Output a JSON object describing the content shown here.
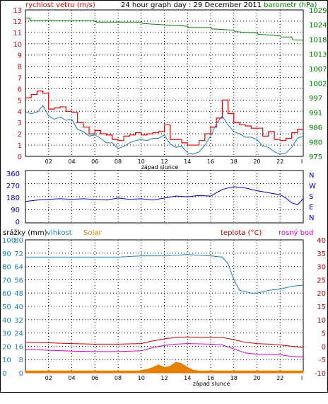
{
  "colors": {
    "wind": "#e60000",
    "wind_avg": "#1c7fb8",
    "baro": "#007a00",
    "dir": "#0000b4",
    "rain": "#1c7fb8",
    "hum": "#1c7fb8",
    "solar": "#e67e00",
    "temp": "#c00000",
    "dew": "#d000d0",
    "grid": "#000000"
  },
  "chart_data": [
    {
      "type": "line",
      "title": "24 hour graph day : 29 December 2011",
      "left_label": "rychlost vetru (m/s)",
      "right_label": "barometr (hPa)",
      "xlabel": "západ slunce",
      "x_ticks": [
        "02",
        "04",
        "06",
        "08",
        "10",
        "12",
        "14",
        "16",
        "18",
        "20",
        "22",
        "I"
      ],
      "y_left_ticks": [
        "0",
        "1",
        "2",
        "3",
        "4",
        "5",
        "6",
        "7",
        "8",
        "9",
        "10",
        "11",
        "12",
        "13"
      ],
      "y_right_ticks": [
        "975",
        "980",
        "986",
        "991",
        "997",
        "1002",
        "1007",
        "1013",
        "1018",
        "1024",
        "1029"
      ],
      "ylim_left": [
        0,
        13
      ],
      "ylim_right": [
        975,
        1029
      ],
      "series": [
        {
          "name": "rychlost vetru (m/s)",
          "color_key": "wind",
          "axis": "left",
          "x": [
            0,
            0.5,
            1,
            1.5,
            2,
            2.5,
            3,
            3.5,
            4,
            4.5,
            5,
            5.5,
            6,
            6.5,
            7,
            7.5,
            8,
            8.5,
            9,
            9.5,
            10,
            10.5,
            11,
            11.5,
            12,
            12.5,
            13,
            13.5,
            14,
            14.5,
            15,
            15.5,
            16,
            16.5,
            17,
            17.5,
            18,
            18.5,
            19,
            19.5,
            20,
            20.5,
            21,
            21.5,
            22,
            22.5,
            23,
            23.5,
            24
          ],
          "y": [
            5.2,
            5.5,
            5.8,
            5.6,
            4.2,
            4.3,
            4.4,
            4.0,
            3.9,
            3.0,
            2.6,
            2.0,
            2.3,
            2.0,
            1.9,
            1.5,
            1.4,
            1.8,
            1.9,
            2.1,
            1.9,
            2.0,
            2.1,
            2.2,
            2.8,
            1.5,
            1.5,
            1.2,
            1.0,
            1.0,
            1.4,
            2.0,
            2.6,
            3.4,
            5.0,
            3.8,
            3.0,
            2.8,
            2.7,
            2.5,
            2.5,
            1.8,
            2.2,
            1.5,
            1.4,
            1.6,
            2.1,
            2.4,
            2.5
          ]
        },
        {
          "name": "wind average",
          "color_key": "wind_avg",
          "axis": "left",
          "x": [
            0,
            0.5,
            1,
            1.5,
            2,
            2.5,
            3,
            3.5,
            4,
            4.5,
            5,
            5.5,
            6,
            6.5,
            7,
            7.5,
            8,
            8.5,
            9,
            9.5,
            10,
            10.5,
            11,
            11.5,
            12,
            12.5,
            13,
            13.5,
            14,
            14.5,
            15,
            15.5,
            16,
            16.5,
            17,
            17.5,
            18,
            18.5,
            19,
            19.5,
            20,
            20.5,
            21,
            21.5,
            22,
            22.5,
            23,
            23.5,
            24
          ],
          "y": [
            3.9,
            3.8,
            3.9,
            4.5,
            3.6,
            3.3,
            3.5,
            3.2,
            3.3,
            2.4,
            2.2,
            1.8,
            1.9,
            1.6,
            1.2,
            1.2,
            0.7,
            0.9,
            1.2,
            1.4,
            1.5,
            1.4,
            1.6,
            1.6,
            1.9,
            1.1,
            0.8,
            0.9,
            0.3,
            0.2,
            0.4,
            1.0,
            1.8,
            2.9,
            3.6,
            2.8,
            2.2,
            2.0,
            1.7,
            1.7,
            1.5,
            0.9,
            0.8,
            0.4,
            0.2,
            0.3,
            0.8,
            1.6,
            1.8
          ]
        },
        {
          "name": "barometr (hPa)",
          "color_key": "baro",
          "axis": "right",
          "x": [
            0,
            0.4,
            0.4,
            4,
            6,
            6.1,
            8,
            10,
            10.1,
            12,
            14,
            14.1,
            16,
            16.1,
            17,
            18,
            18.1,
            20,
            20.1,
            22,
            22.1,
            23,
            23.1,
            24
          ],
          "y": [
            1026,
            1026,
            1025,
            1025,
            1025,
            1024.5,
            1024.5,
            1024.5,
            1024,
            1023.5,
            1023,
            1022.5,
            1022.5,
            1022,
            1021.8,
            1021.5,
            1021,
            1020.5,
            1020,
            1019.5,
            1019,
            1019,
            1018,
            1017.8
          ]
        }
      ]
    },
    {
      "type": "line",
      "right_labels": [
        "N",
        "W",
        "S",
        "E",
        "N"
      ],
      "y_ticks": [
        "0",
        "90",
        "180",
        "270",
        "360"
      ],
      "ylim": [
        0,
        360
      ],
      "series": [
        {
          "name": "wind direction",
          "color_key": "dir",
          "x": [
            0,
            1,
            2,
            3,
            4,
            5,
            6,
            7,
            8,
            9,
            10,
            11,
            12,
            13,
            14,
            15,
            16,
            17,
            18,
            19,
            20,
            21,
            22,
            22.5,
            23,
            23.5,
            24
          ],
          "y": [
            150,
            160,
            165,
            170,
            165,
            170,
            165,
            160,
            175,
            165,
            170,
            160,
            175,
            190,
            185,
            195,
            190,
            240,
            260,
            250,
            230,
            215,
            200,
            175,
            140,
            125,
            170
          ]
        }
      ]
    },
    {
      "type": "line",
      "left_labels": [
        "srážky (mm)",
        "vlhkost",
        "Solar"
      ],
      "right_labels": [
        "teplota (°C)",
        "rosný bod"
      ],
      "xlabel": "západ slunce",
      "x_ticks": [
        "02",
        "04",
        "06",
        "08",
        "10",
        "12",
        "14",
        "16",
        "18",
        "20",
        "22",
        "I"
      ],
      "y_left_outer": [
        "0",
        "10",
        "20",
        "30",
        "40",
        "50",
        "60",
        "70",
        "80",
        "90",
        "100"
      ],
      "y_left_inner": [
        "0",
        "8",
        "16",
        "24",
        "32",
        "40",
        "48",
        "56",
        "64",
        "72",
        "80"
      ],
      "y_right": [
        "-10",
        "-5",
        "0",
        "5",
        "10",
        "15",
        "20",
        "25",
        "30",
        "35",
        "40"
      ],
      "ylim_hum": [
        0,
        100
      ],
      "ylim_temp": [
        -10,
        40
      ],
      "series": [
        {
          "name": "vlhkost",
          "color_key": "hum",
          "axis": "hum",
          "x": [
            0,
            2,
            4,
            6,
            8,
            10,
            12,
            14,
            16,
            17,
            17.5,
            18,
            18.5,
            19,
            19.5,
            20,
            21,
            22,
            23,
            24
          ],
          "y": [
            87,
            87,
            87,
            87,
            87,
            88,
            88,
            89,
            88,
            87,
            82,
            70,
            62,
            61,
            60,
            60,
            62,
            63,
            65,
            66
          ]
        },
        {
          "name": "teplota (°C)",
          "color_key": "temp",
          "axis": "temp",
          "x": [
            0,
            2,
            4,
            6,
            8,
            10,
            11,
            12,
            13,
            14,
            15,
            16,
            17,
            18,
            19,
            20,
            21,
            22,
            23,
            24
          ],
          "y": [
            1.5,
            1.3,
            1.0,
            0.8,
            0.8,
            1.0,
            2.0,
            2.8,
            3.3,
            3.5,
            3.4,
            3.3,
            3.3,
            2.5,
            1.5,
            1.0,
            0.8,
            0.5,
            0.0,
            -0.5
          ]
        },
        {
          "name": "rosný bod",
          "color_key": "dew",
          "axis": "temp",
          "x": [
            0,
            2,
            4,
            6,
            8,
            10,
            11,
            12,
            13,
            14,
            15,
            16,
            17,
            18,
            19,
            20,
            21,
            22,
            23,
            24
          ],
          "y": [
            -1.2,
            -1.5,
            -1.8,
            -2.0,
            -2.0,
            -1.7,
            -0.5,
            0.3,
            0.8,
            1.0,
            0.9,
            0.8,
            0.5,
            -1.0,
            -2.5,
            -3.0,
            -3.0,
            -3.2,
            -3.8,
            -4.0
          ]
        },
        {
          "name": "Solar",
          "color_key": "solar",
          "axis": "hum",
          "type": "area",
          "x": [
            0,
            9.8,
            10.5,
            11,
            11.5,
            12,
            12.5,
            13,
            13.5,
            14,
            14.5,
            15,
            24
          ],
          "y": [
            1.5,
            1.5,
            2.5,
            4,
            6,
            4,
            5,
            8,
            7,
            4,
            2,
            1.5,
            1.5
          ]
        }
      ]
    }
  ]
}
